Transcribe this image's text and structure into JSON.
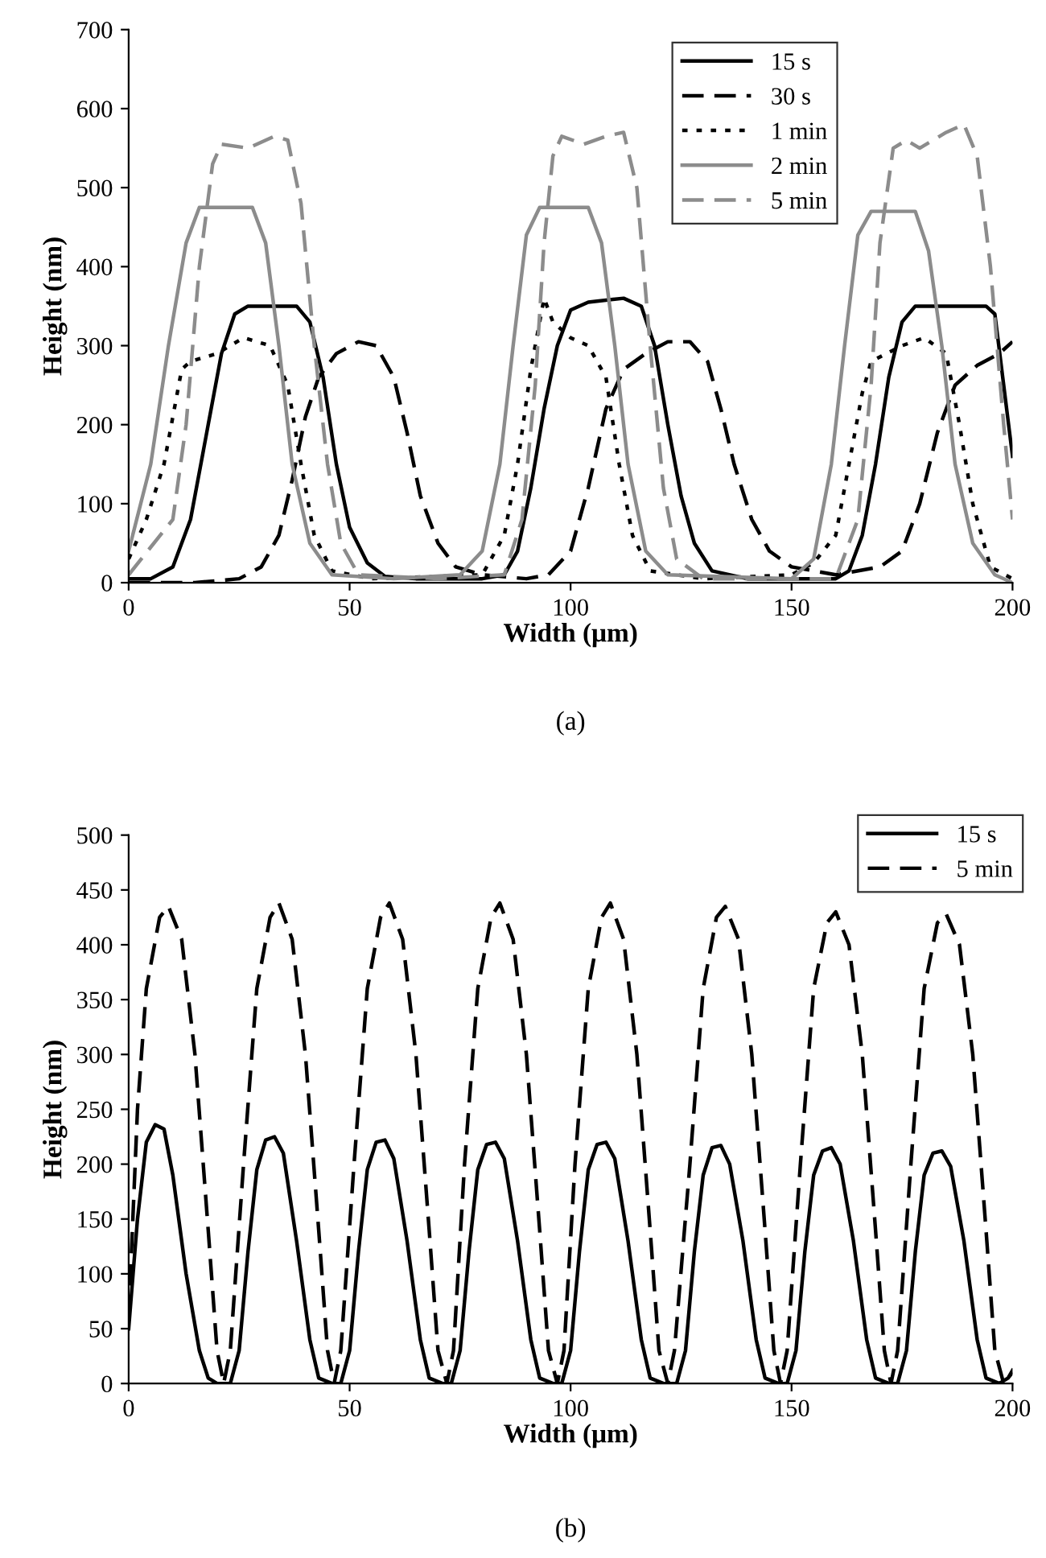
{
  "chart_data": [
    {
      "type": "line",
      "xlabel": "Width (μm)",
      "ylabel": "Height (nm)",
      "xlim": [
        0,
        200
      ],
      "ylim": [
        0,
        700
      ],
      "xticks": [
        0,
        50,
        100,
        150,
        200
      ],
      "yticks": [
        0,
        100,
        200,
        300,
        400,
        500,
        600,
        700
      ],
      "grid": false,
      "legend": "top right",
      "annotations": [
        "(a)"
      ],
      "series": [
        {
          "name": "15 s",
          "color": "#000000",
          "line_style": "solid",
          "x": [
            0,
            5,
            10,
            14,
            18,
            21,
            24,
            27,
            38,
            41,
            44,
            47,
            50,
            54,
            58,
            65,
            80,
            85,
            88,
            91,
            94,
            97,
            100,
            104,
            112,
            116,
            119,
            122,
            125,
            128,
            132,
            140,
            160,
            163,
            166,
            169,
            172,
            175,
            178,
            194,
            196,
            198,
            200
          ],
          "values": [
            5,
            5,
            20,
            80,
            200,
            290,
            340,
            350,
            350,
            330,
            260,
            150,
            70,
            25,
            8,
            5,
            5,
            10,
            40,
            120,
            220,
            300,
            345,
            355,
            360,
            350,
            300,
            200,
            110,
            50,
            15,
            5,
            5,
            15,
            60,
            150,
            260,
            330,
            350,
            350,
            340,
            250,
            160
          ]
        },
        {
          "name": "30 s",
          "color": "#000000",
          "line_style": "dashed",
          "x": [
            0,
            15,
            25,
            30,
            34,
            37,
            40,
            43,
            47,
            52,
            56,
            60,
            63,
            66,
            70,
            74,
            80,
            90,
            95,
            100,
            104,
            108,
            112,
            117,
            122,
            127,
            131,
            134,
            137,
            141,
            145,
            150,
            160,
            170,
            175,
            179,
            183,
            187,
            192,
            197,
            200
          ],
          "values": [
            0,
            0,
            5,
            20,
            60,
            130,
            210,
            260,
            290,
            305,
            300,
            260,
            190,
            110,
            50,
            20,
            10,
            5,
            10,
            40,
            120,
            220,
            270,
            290,
            305,
            305,
            280,
            220,
            150,
            80,
            40,
            20,
            10,
            20,
            40,
            100,
            190,
            250,
            275,
            290,
            305
          ]
        },
        {
          "name": "1 min",
          "color": "#000000",
          "line_style": "dotted",
          "x": [
            0,
            4,
            8,
            12,
            14,
            20,
            26,
            32,
            36,
            39,
            42,
            46,
            55,
            80,
            85,
            88,
            91,
            94,
            96,
            98,
            100,
            104,
            108,
            111,
            114,
            118,
            130,
            150,
            155,
            160,
            163,
            166,
            168,
            175,
            180,
            185,
            188,
            191,
            195,
            200
          ],
          "values": [
            30,
            80,
            150,
            270,
            280,
            290,
            310,
            300,
            250,
            150,
            60,
            15,
            5,
            10,
            60,
            150,
            270,
            360,
            330,
            320,
            310,
            300,
            260,
            150,
            60,
            15,
            5,
            10,
            25,
            60,
            150,
            240,
            280,
            300,
            310,
            290,
            200,
            100,
            20,
            5
          ]
        },
        {
          "name": "2 min",
          "color": "#8c8c8c",
          "line_style": "solid",
          "x": [
            0,
            5,
            9,
            13,
            16,
            28,
            31,
            34,
            37,
            41,
            46,
            60,
            75,
            80,
            84,
            87,
            90,
            93,
            104,
            107,
            110,
            113,
            117,
            122,
            150,
            155,
            159,
            162,
            165,
            168,
            178,
            181,
            184,
            187,
            191,
            196,
            200
          ],
          "values": [
            40,
            150,
            300,
            430,
            475,
            475,
            430,
            300,
            150,
            50,
            10,
            5,
            10,
            40,
            150,
            300,
            440,
            475,
            475,
            430,
            300,
            150,
            40,
            10,
            5,
            30,
            150,
            300,
            440,
            470,
            470,
            420,
            300,
            150,
            50,
            10,
            0
          ]
        },
        {
          "name": "5 min",
          "color": "#8c8c8c",
          "line_style": "dashed",
          "x": [
            0,
            10,
            13,
            16,
            19,
            21,
            27,
            33,
            36,
            39,
            42,
            45,
            48,
            52,
            70,
            85,
            89,
            92,
            94,
            96,
            98,
            103,
            108,
            112,
            115,
            118,
            121,
            124,
            130,
            160,
            165,
            168,
            170,
            173,
            176,
            179,
            185,
            189,
            192,
            195,
            198,
            200
          ],
          "values": [
            10,
            80,
            200,
            400,
            530,
            555,
            550,
            565,
            560,
            480,
            300,
            150,
            50,
            10,
            5,
            10,
            80,
            250,
            430,
            540,
            565,
            555,
            565,
            570,
            500,
            300,
            120,
            30,
            5,
            5,
            80,
            250,
            430,
            550,
            560,
            550,
            570,
            580,
            540,
            400,
            200,
            80
          ]
        }
      ]
    },
    {
      "type": "line",
      "xlabel": "Width (μm)",
      "ylabel": "Height (nm)",
      "xlim": [
        0,
        200
      ],
      "ylim": [
        0,
        500
      ],
      "xticks": [
        0,
        50,
        100,
        150,
        200
      ],
      "yticks": [
        0,
        50,
        100,
        150,
        200,
        250,
        300,
        350,
        400,
        450,
        500
      ],
      "grid": false,
      "legend": "top right",
      "annotations": [
        "(b)"
      ],
      "series": [
        {
          "name": "15 s",
          "color": "#000000",
          "line_style": "solid",
          "x": [
            0,
            2,
            4,
            6,
            8,
            10,
            13,
            16,
            18,
            20,
            23,
            25,
            27,
            29,
            31,
            33,
            35,
            38,
            41,
            43,
            46,
            48,
            50,
            52,
            54,
            56,
            58,
            60,
            63,
            66,
            68,
            71,
            73,
            75,
            77,
            79,
            81,
            83,
            85,
            88,
            91,
            93,
            96,
            98,
            100,
            102,
            104,
            106,
            108,
            110,
            113,
            116,
            118,
            121,
            124,
            126,
            128,
            130,
            132,
            134,
            136,
            139,
            142,
            144,
            147,
            149,
            151,
            153,
            155,
            157,
            159,
            161,
            164,
            167,
            169,
            172,
            174,
            176,
            178,
            180,
            182,
            184,
            186,
            189,
            192,
            194,
            197,
            199,
            200
          ],
          "values": [
            50,
            150,
            220,
            236,
            232,
            190,
            100,
            30,
            5,
            0,
            0,
            30,
            120,
            195,
            222,
            225,
            210,
            130,
            40,
            5,
            0,
            0,
            30,
            120,
            195,
            220,
            222,
            205,
            130,
            40,
            5,
            0,
            0,
            30,
            120,
            195,
            218,
            220,
            205,
            130,
            40,
            5,
            0,
            0,
            30,
            120,
            195,
            218,
            220,
            205,
            130,
            40,
            5,
            0,
            0,
            30,
            120,
            190,
            215,
            217,
            200,
            130,
            40,
            5,
            0,
            0,
            30,
            120,
            190,
            212,
            215,
            200,
            130,
            40,
            5,
            0,
            0,
            30,
            120,
            190,
            210,
            212,
            198,
            130,
            40,
            5,
            0,
            5,
            12
          ]
        },
        {
          "name": "5 min",
          "color": "#000000",
          "line_style": "dashed",
          "x": [
            0,
            2,
            4,
            7,
            9,
            12,
            15,
            18,
            20,
            21.5,
            23,
            26,
            29,
            32,
            34,
            37,
            40,
            43,
            45,
            46.5,
            48,
            51,
            54,
            57,
            59,
            62,
            65,
            68,
            70,
            72,
            73.5,
            76,
            79,
            82,
            84,
            87,
            90,
            93,
            95,
            97,
            98.5,
            101,
            104,
            107,
            109,
            112,
            115,
            118,
            120,
            122,
            123.5,
            127,
            130,
            133,
            135,
            138,
            141,
            144,
            146,
            147.5,
            149,
            152,
            155,
            158,
            160,
            163,
            166,
            169,
            171,
            172.5,
            174,
            177,
            180,
            183,
            185,
            188,
            191,
            194,
            196,
            198,
            200
          ],
          "values": [
            60,
            250,
            360,
            425,
            435,
            405,
            300,
            140,
            30,
            0,
            30,
            200,
            360,
            425,
            438,
            405,
            300,
            140,
            30,
            0,
            30,
            200,
            360,
            425,
            438,
            405,
            300,
            140,
            30,
            0,
            30,
            200,
            360,
            425,
            438,
            405,
            300,
            140,
            30,
            0,
            30,
            200,
            360,
            425,
            438,
            405,
            300,
            140,
            30,
            0,
            30,
            200,
            360,
            425,
            435,
            405,
            300,
            140,
            30,
            0,
            30,
            200,
            360,
            420,
            430,
            400,
            300,
            140,
            30,
            0,
            30,
            200,
            360,
            420,
            428,
            400,
            300,
            140,
            30,
            0,
            10
          ]
        }
      ]
    }
  ]
}
